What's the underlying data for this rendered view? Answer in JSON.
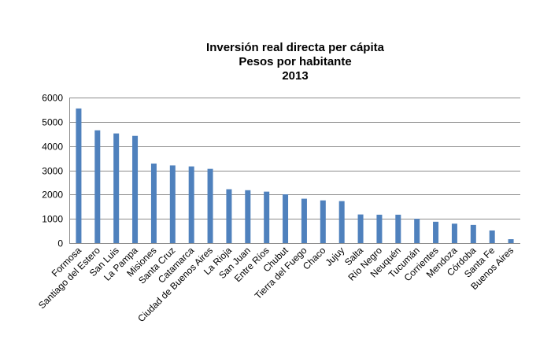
{
  "chart_data": {
    "type": "bar",
    "title": "Inversión real directa per cápita",
    "subtitle": "Pesos por habitante",
    "year": "2013",
    "xlabel": "",
    "ylabel": "",
    "ylim": [
      0,
      6000
    ],
    "yticks": [
      0,
      1000,
      2000,
      3000,
      4000,
      5000,
      6000
    ],
    "grid": true,
    "legend": "none",
    "bar_color": "#4F81BD",
    "categories": [
      "Formosa",
      "Santiago del Estero",
      "San Luis",
      "La Pampa",
      "Misiones",
      "Santa Cruz",
      "Catamarca",
      "Ciudad de Buenos Aires",
      "La Rioja",
      "San Juan",
      "Entre Ríos",
      "Chubut",
      "Tierra del Fuego",
      "Chaco",
      "Jujuy",
      "Salta",
      "Río Negro",
      "Neuquén",
      "Tucumán",
      "Corrientes",
      "Mendoza",
      "Córdoba",
      "Santa Fe",
      "Buenos Aires"
    ],
    "values": [
      5550,
      4650,
      4520,
      4420,
      3280,
      3200,
      3160,
      3060,
      2220,
      2180,
      2120,
      2010,
      1830,
      1760,
      1730,
      1180,
      1170,
      1170,
      1000,
      880,
      800,
      750,
      520,
      160
    ]
  }
}
